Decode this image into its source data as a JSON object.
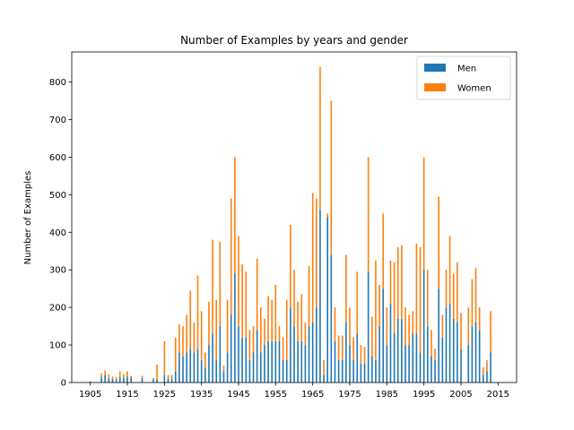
{
  "chart_data": {
    "type": "bar",
    "stacked": true,
    "title": "Number of Examples by years and gender",
    "xlabel": "",
    "ylabel": "Number of Examples",
    "xlim": [
      1900,
      2020
    ],
    "ylim": [
      0,
      880
    ],
    "xticks": [
      1905,
      1915,
      1925,
      1935,
      1945,
      1955,
      1965,
      1975,
      1985,
      1995,
      2005,
      2015
    ],
    "yticks": [
      0,
      100,
      200,
      300,
      400,
      500,
      600,
      700,
      800
    ],
    "legend_position": "top-right",
    "colors": {
      "men": "#1f77b4",
      "women": "#ff7f0e"
    },
    "series": [
      {
        "name": "Men",
        "points": [
          [
            1905,
            2
          ],
          [
            1908,
            14
          ],
          [
            1909,
            20
          ],
          [
            1910,
            12
          ],
          [
            1911,
            10
          ],
          [
            1912,
            8
          ],
          [
            1913,
            14
          ],
          [
            1914,
            12
          ],
          [
            1915,
            16
          ],
          [
            1916,
            14
          ],
          [
            1919,
            12
          ],
          [
            1922,
            8
          ],
          [
            1923,
            8
          ],
          [
            1925,
            20
          ],
          [
            1926,
            10
          ],
          [
            1927,
            10
          ],
          [
            1928,
            30
          ],
          [
            1929,
            80
          ],
          [
            1930,
            70
          ],
          [
            1931,
            80
          ],
          [
            1932,
            90
          ],
          [
            1933,
            80
          ],
          [
            1934,
            90
          ],
          [
            1935,
            60
          ],
          [
            1936,
            40
          ],
          [
            1937,
            100
          ],
          [
            1938,
            130
          ],
          [
            1939,
            60
          ],
          [
            1940,
            150
          ],
          [
            1941,
            30
          ],
          [
            1942,
            80
          ],
          [
            1943,
            180
          ],
          [
            1944,
            290
          ],
          [
            1945,
            150
          ],
          [
            1946,
            120
          ],
          [
            1947,
            120
          ],
          [
            1948,
            60
          ],
          [
            1949,
            80
          ],
          [
            1950,
            140
          ],
          [
            1951,
            80
          ],
          [
            1952,
            100
          ],
          [
            1953,
            110
          ],
          [
            1954,
            110
          ],
          [
            1955,
            110
          ],
          [
            1956,
            110
          ],
          [
            1957,
            60
          ],
          [
            1958,
            60
          ],
          [
            1959,
            200
          ],
          [
            1960,
            150
          ],
          [
            1961,
            110
          ],
          [
            1962,
            110
          ],
          [
            1963,
            100
          ],
          [
            1964,
            150
          ],
          [
            1965,
            160
          ],
          [
            1966,
            200
          ],
          [
            1967,
            460
          ],
          [
            1968,
            20
          ],
          [
            1969,
            440
          ],
          [
            1970,
            340
          ],
          [
            1971,
            110
          ],
          [
            1972,
            60
          ],
          [
            1973,
            60
          ],
          [
            1974,
            160
          ],
          [
            1975,
            100
          ],
          [
            1976,
            60
          ],
          [
            1977,
            130
          ],
          [
            1978,
            50
          ],
          [
            1979,
            50
          ],
          [
            1980,
            295
          ],
          [
            1981,
            70
          ],
          [
            1982,
            60
          ],
          [
            1983,
            150
          ],
          [
            1984,
            250
          ],
          [
            1985,
            100
          ],
          [
            1986,
            210
          ],
          [
            1987,
            130
          ],
          [
            1988,
            170
          ],
          [
            1989,
            170
          ],
          [
            1990,
            100
          ],
          [
            1991,
            100
          ],
          [
            1992,
            130
          ],
          [
            1993,
            130
          ],
          [
            1994,
            80
          ],
          [
            1995,
            300
          ],
          [
            1996,
            150
          ],
          [
            1997,
            70
          ],
          [
            1998,
            60
          ],
          [
            1999,
            250
          ],
          [
            2000,
            120
          ],
          [
            2001,
            200
          ],
          [
            2002,
            210
          ],
          [
            2003,
            170
          ],
          [
            2004,
            160
          ],
          [
            2005,
            90
          ],
          [
            2007,
            100
          ],
          [
            2008,
            150
          ],
          [
            2009,
            160
          ],
          [
            2010,
            140
          ],
          [
            2011,
            20
          ],
          [
            2012,
            30
          ],
          [
            2013,
            80
          ]
        ]
      },
      {
        "name": "Women",
        "points": [
          [
            1905,
            2
          ],
          [
            1908,
            10
          ],
          [
            1909,
            12
          ],
          [
            1910,
            10
          ],
          [
            1911,
            6
          ],
          [
            1912,
            6
          ],
          [
            1913,
            16
          ],
          [
            1914,
            10
          ],
          [
            1915,
            14
          ],
          [
            1916,
            4
          ],
          [
            1919,
            6
          ],
          [
            1922,
            4
          ],
          [
            1923,
            40
          ],
          [
            1925,
            90
          ],
          [
            1926,
            10
          ],
          [
            1927,
            10
          ],
          [
            1928,
            90
          ],
          [
            1929,
            75
          ],
          [
            1930,
            80
          ],
          [
            1931,
            100
          ],
          [
            1932,
            155
          ],
          [
            1933,
            80
          ],
          [
            1934,
            195
          ],
          [
            1935,
            130
          ],
          [
            1936,
            40
          ],
          [
            1937,
            115
          ],
          [
            1938,
            250
          ],
          [
            1939,
            160
          ],
          [
            1940,
            225
          ],
          [
            1941,
            15
          ],
          [
            1942,
            140
          ],
          [
            1943,
            310
          ],
          [
            1944,
            310
          ],
          [
            1945,
            240
          ],
          [
            1946,
            195
          ],
          [
            1947,
            175
          ],
          [
            1948,
            80
          ],
          [
            1949,
            70
          ],
          [
            1950,
            190
          ],
          [
            1951,
            120
          ],
          [
            1952,
            70
          ],
          [
            1953,
            120
          ],
          [
            1954,
            110
          ],
          [
            1955,
            150
          ],
          [
            1956,
            40
          ],
          [
            1957,
            60
          ],
          [
            1958,
            160
          ],
          [
            1959,
            220
          ],
          [
            1960,
            150
          ],
          [
            1961,
            105
          ],
          [
            1962,
            125
          ],
          [
            1963,
            60
          ],
          [
            1964,
            160
          ],
          [
            1965,
            345
          ],
          [
            1966,
            290
          ],
          [
            1967,
            380
          ],
          [
            1968,
            40
          ],
          [
            1969,
            10
          ],
          [
            1970,
            410
          ],
          [
            1971,
            90
          ],
          [
            1972,
            65
          ],
          [
            1973,
            65
          ],
          [
            1974,
            180
          ],
          [
            1975,
            100
          ],
          [
            1976,
            60
          ],
          [
            1977,
            165
          ],
          [
            1978,
            50
          ],
          [
            1979,
            45
          ],
          [
            1980,
            305
          ],
          [
            1981,
            105
          ],
          [
            1982,
            265
          ],
          [
            1983,
            110
          ],
          [
            1984,
            200
          ],
          [
            1985,
            100
          ],
          [
            1986,
            115
          ],
          [
            1987,
            190
          ],
          [
            1988,
            190
          ],
          [
            1989,
            195
          ],
          [
            1990,
            100
          ],
          [
            1991,
            80
          ],
          [
            1992,
            60
          ],
          [
            1993,
            240
          ],
          [
            1994,
            280
          ],
          [
            1995,
            300
          ],
          [
            1996,
            150
          ],
          [
            1997,
            70
          ],
          [
            1998,
            30
          ],
          [
            1999,
            245
          ],
          [
            2000,
            60
          ],
          [
            2001,
            100
          ],
          [
            2002,
            180
          ],
          [
            2003,
            120
          ],
          [
            2004,
            160
          ],
          [
            2005,
            95
          ],
          [
            2007,
            100
          ],
          [
            2008,
            125
          ],
          [
            2009,
            145
          ],
          [
            2010,
            60
          ],
          [
            2011,
            20
          ],
          [
            2012,
            30
          ],
          [
            2013,
            110
          ]
        ]
      }
    ]
  }
}
